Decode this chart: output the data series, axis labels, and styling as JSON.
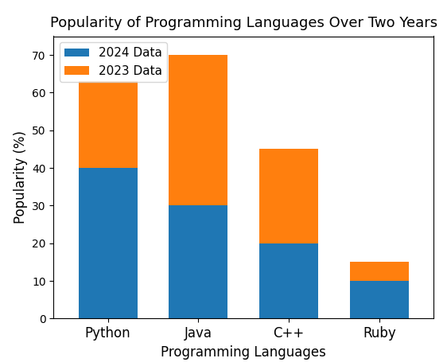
{
  "title": "Popularity of Programming Languages Over Two Years",
  "xlabel": "Programming Languages",
  "ylabel": "Popularity (%)",
  "categories": [
    "Python",
    "Java",
    "C++",
    "Ruby"
  ],
  "values_2024": [
    40,
    30,
    20,
    10
  ],
  "values_2023": [
    23,
    40,
    25,
    5
  ],
  "color_2024": "#1f77b4",
  "color_2023": "#ff7f0e",
  "legend_labels": [
    "2024 Data",
    "2023 Data"
  ],
  "legend_loc": "upper left",
  "ylim": [
    0,
    75
  ],
  "title_fontsize": 13,
  "label_fontsize": 12,
  "tick_fontsize": 12,
  "legend_fontsize": 11,
  "bar_width": 0.65
}
